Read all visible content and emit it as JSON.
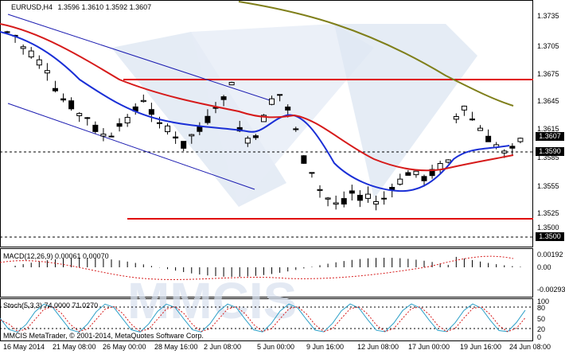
{
  "header": {
    "symbol": "EURUSD,H4",
    "ohlc": "1.3596 1.3610 1.3592 1.3607"
  },
  "price_axis": {
    "labels": [
      "1.3735",
      "1.3705",
      "1.3675",
      "1.3645",
      "1.3615",
      "1.3585",
      "1.3555",
      "1.3525",
      "1.3500"
    ],
    "tag_current": "1.3607",
    "tag_level": "1.3590",
    "tag_low": "1.3500"
  },
  "macd": {
    "title": "MACD(12,26,9) 0.00061 0.00070",
    "labels": [
      "0.00192",
      "0.00",
      "-0.00293"
    ]
  },
  "stoch": {
    "title": "Stoch(5,3,3) 74.0000 71.0270",
    "labels": [
      "100",
      "80",
      "50",
      "20",
      "0"
    ]
  },
  "copyright": "MMCIS MetaTrader, © 2001-2014, MetaQuotes Software Corp.",
  "time_axis": [
    "16 May 2014",
    "21 May 08:00",
    "26 May 00:00",
    "28 May 16:00",
    "2 Jun 08:00",
    "5 Jun 00:00",
    "9 Jun 16:00",
    "12 Jun 08:00",
    "17 Jun 00:00",
    "19 Jun 16:00",
    "24 Jun 08:00"
  ],
  "watermark": "MMCIS",
  "colors": {
    "bull": "#ffffff",
    "bear": "#000000",
    "ma_fast": "#1a2fd6",
    "ma_slow": "#d61a1a",
    "ma_long": "#7f7f1a",
    "level": "#e00000",
    "channel": "#1a1ab0",
    "stoch_main": "#2da0c8",
    "stoch_signal": "#d61a1a",
    "macd_hist": "#d61a1a"
  }
}
